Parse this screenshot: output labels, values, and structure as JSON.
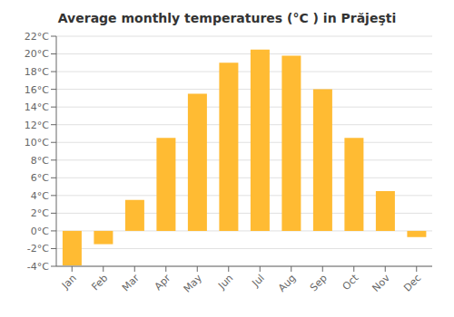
{
  "chart_data": {
    "type": "bar",
    "title": "Average monthly temperatures (°C ) in Prăjeşti",
    "categories": [
      "Jan",
      "Feb",
      "Mar",
      "Apr",
      "May",
      "Jun",
      "Jul",
      "Aug",
      "Sep",
      "Oct",
      "Nov",
      "Dec"
    ],
    "values": [
      -3.9,
      -1.5,
      3.5,
      10.5,
      15.5,
      19.0,
      20.5,
      19.8,
      16.0,
      10.5,
      4.5,
      -0.7
    ],
    "color": "#FFBB33",
    "ylim": [
      -4,
      22
    ],
    "yticks": [
      {
        "value": -4,
        "label": "-4°C"
      },
      {
        "value": -2,
        "label": "-2°C"
      },
      {
        "value": 0,
        "label": "0°C"
      },
      {
        "value": 2,
        "label": "2°C"
      },
      {
        "value": 4,
        "label": "4°C"
      },
      {
        "value": 6,
        "label": "6°C"
      },
      {
        "value": 8,
        "label": "8°C"
      },
      {
        "value": 10,
        "label": "10°C"
      },
      {
        "value": 12,
        "label": "12°C"
      },
      {
        "value": 14,
        "label": "14°C"
      },
      {
        "value": 16,
        "label": "16°C"
      },
      {
        "value": 18,
        "label": "18°C"
      },
      {
        "value": 20,
        "label": "20°C"
      },
      {
        "value": 22,
        "label": "22°C"
      }
    ],
    "grid": true
  }
}
